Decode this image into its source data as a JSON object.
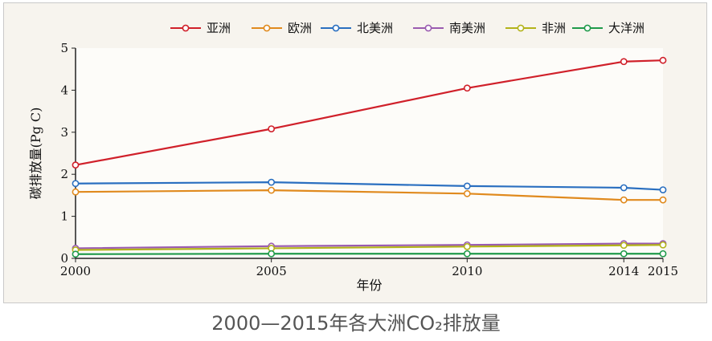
{
  "caption": "2000—2015年各大洲CO₂排放量",
  "chart_data": {
    "type": "line",
    "title": "",
    "xlabel": "年份",
    "ylabel": "碳排放量(Pg C)",
    "x": [
      2000,
      2005,
      2010,
      2014,
      2015
    ],
    "xlim": [
      2000,
      2015
    ],
    "ylim": [
      0,
      5
    ],
    "yticks": [
      0,
      1,
      2,
      3,
      4,
      5
    ],
    "grid": false,
    "legend_position": "top",
    "series": [
      {
        "name": "亚洲",
        "color": "#d0202a",
        "values": [
          2.22,
          3.08,
          4.05,
          4.68,
          4.71
        ]
      },
      {
        "name": "欧洲",
        "color": "#e08a1e",
        "values": [
          1.58,
          1.62,
          1.54,
          1.39,
          1.39
        ]
      },
      {
        "name": "北美洲",
        "color": "#2a6fc0",
        "values": [
          1.78,
          1.81,
          1.72,
          1.68,
          1.63
        ]
      },
      {
        "name": "南美洲",
        "color": "#9a5bb0",
        "values": [
          0.24,
          0.29,
          0.32,
          0.35,
          0.35
        ]
      },
      {
        "name": "非洲",
        "color": "#b3b31a",
        "values": [
          0.2,
          0.24,
          0.28,
          0.31,
          0.32
        ]
      },
      {
        "name": "大洋洲",
        "color": "#1f9a4a",
        "values": [
          0.1,
          0.11,
          0.11,
          0.11,
          0.11
        ]
      }
    ]
  }
}
